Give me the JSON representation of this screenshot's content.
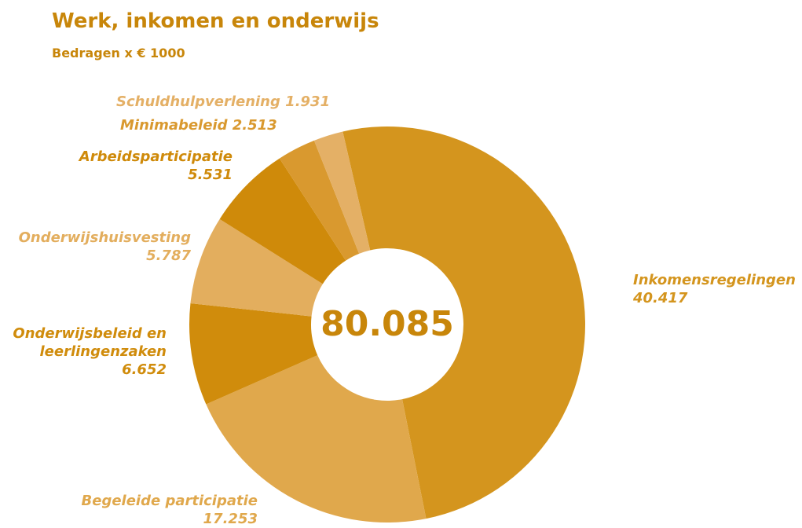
{
  "chart_data": {
    "type": "donut",
    "title": "Werk, inkomen en onderwijs",
    "subtitle": "Bedragen x € 1000",
    "center_label": "80.085",
    "categories": [
      "Inkomensregelingen",
      "Begeleide participatie",
      "Onderwijsbeleid en leerlingenzaken",
      "Onderwijshuisvesting",
      "Arbeidsparticipatie",
      "Minimabeleid",
      "Schuldhulpverlening"
    ],
    "values": [
      40417,
      17253,
      6652,
      5787,
      5531,
      2513,
      1931
    ],
    "value_labels": [
      "40.417",
      "17.253",
      "6.652",
      "5.787",
      "5.531",
      "2.513",
      "1.931"
    ],
    "colors": [
      "#d4951e",
      "#e0a84c",
      "#d08c0c",
      "#e3ae5e",
      "#cf8a0a",
      "#d9992f",
      "#e4b066"
    ]
  }
}
